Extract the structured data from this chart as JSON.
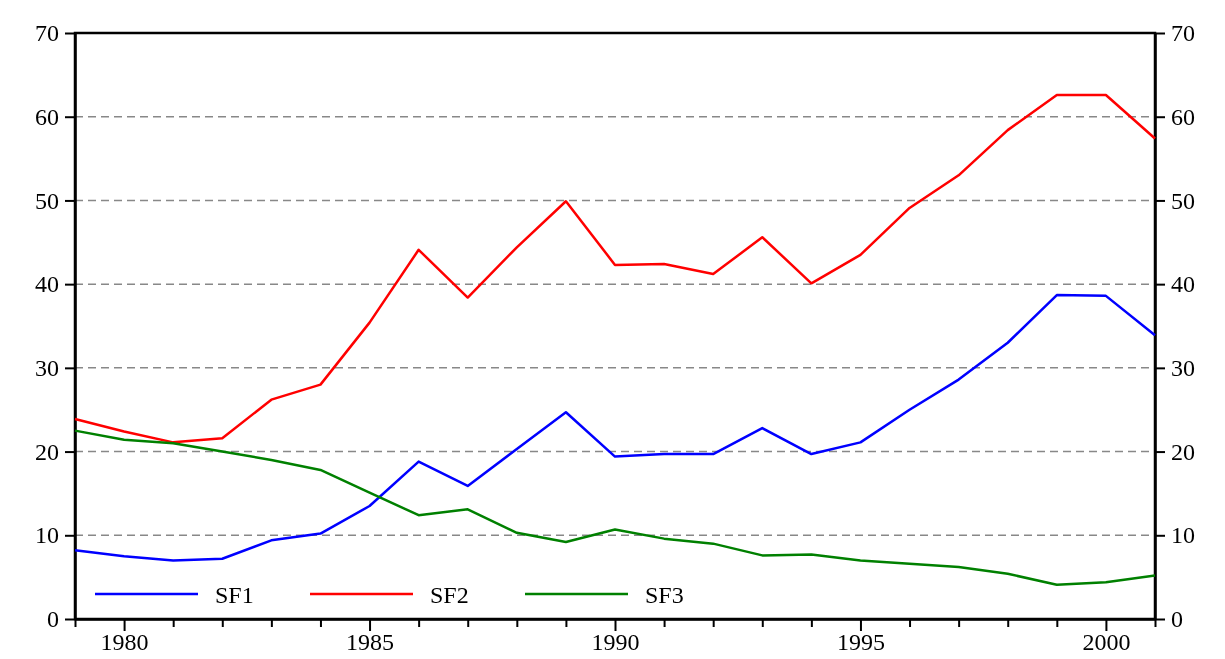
{
  "chart_data": {
    "type": "line",
    "x": [
      1979,
      1980,
      1981,
      1982,
      1983,
      1984,
      1985,
      1986,
      1987,
      1988,
      1989,
      1990,
      1991,
      1992,
      1993,
      1994,
      1995,
      1996,
      1997,
      1998,
      1999,
      2000,
      2001
    ],
    "series": [
      {
        "name": "SF1",
        "color": "#0000ff",
        "values": [
          8.2,
          7.5,
          7.0,
          7.2,
          9.4,
          10.2,
          13.5,
          18.8,
          15.9,
          20.3,
          24.7,
          19.4,
          19.7,
          19.7,
          22.8,
          19.7,
          21.1,
          25.0,
          28.6,
          33.0,
          38.7,
          38.6,
          33.9
        ]
      },
      {
        "name": "SF2",
        "color": "#ff0000",
        "values": [
          23.9,
          22.4,
          21.1,
          21.6,
          26.2,
          28.0,
          35.4,
          44.1,
          38.4,
          44.4,
          49.9,
          42.3,
          42.4,
          41.2,
          45.6,
          40.1,
          43.5,
          49.1,
          53.0,
          58.4,
          62.6,
          62.6,
          57.4
        ]
      },
      {
        "name": "SF3",
        "color": "#008000",
        "values": [
          22.5,
          21.4,
          21.0,
          20.0,
          19.0,
          17.8,
          15.1,
          12.4,
          13.1,
          10.3,
          9.2,
          10.7,
          9.6,
          9.0,
          7.6,
          7.7,
          7.0,
          6.6,
          6.2,
          5.4,
          4.1,
          4.4,
          5.2
        ]
      }
    ],
    "xlim": [
      1979,
      2001
    ],
    "xticks": [
      {
        "value": 1979,
        "label": null
      },
      1980,
      {
        "value": 1981,
        "label": null
      },
      {
        "value": 1982,
        "label": null
      },
      {
        "value": 1983,
        "label": null
      },
      {
        "value": 1984,
        "label": null
      },
      1985,
      {
        "value": 1986,
        "label": null
      },
      {
        "value": 1987,
        "label": null
      },
      {
        "value": 1988,
        "label": null
      },
      {
        "value": 1989,
        "label": null
      },
      1990,
      {
        "value": 1991,
        "label": null
      },
      {
        "value": 1992,
        "label": null
      },
      {
        "value": 1993,
        "label": null
      },
      {
        "value": 1994,
        "label": null
      },
      1995,
      {
        "value": 1996,
        "label": null
      },
      {
        "value": 1997,
        "label": null
      },
      {
        "value": 1998,
        "label": null
      },
      {
        "value": 1999,
        "label": null
      },
      2000,
      {
        "value": 2001,
        "label": null
      }
    ],
    "ylim": [
      0,
      70
    ],
    "yticks": [
      0,
      10,
      20,
      30,
      40,
      50,
      60,
      70
    ],
    "y2lim": [
      0,
      70
    ],
    "y2ticks": [
      0,
      10,
      20,
      30,
      40,
      50,
      60,
      70
    ],
    "grid": "y",
    "legend": "bottom left",
    "line_style": "solid",
    "marker": "none"
  }
}
